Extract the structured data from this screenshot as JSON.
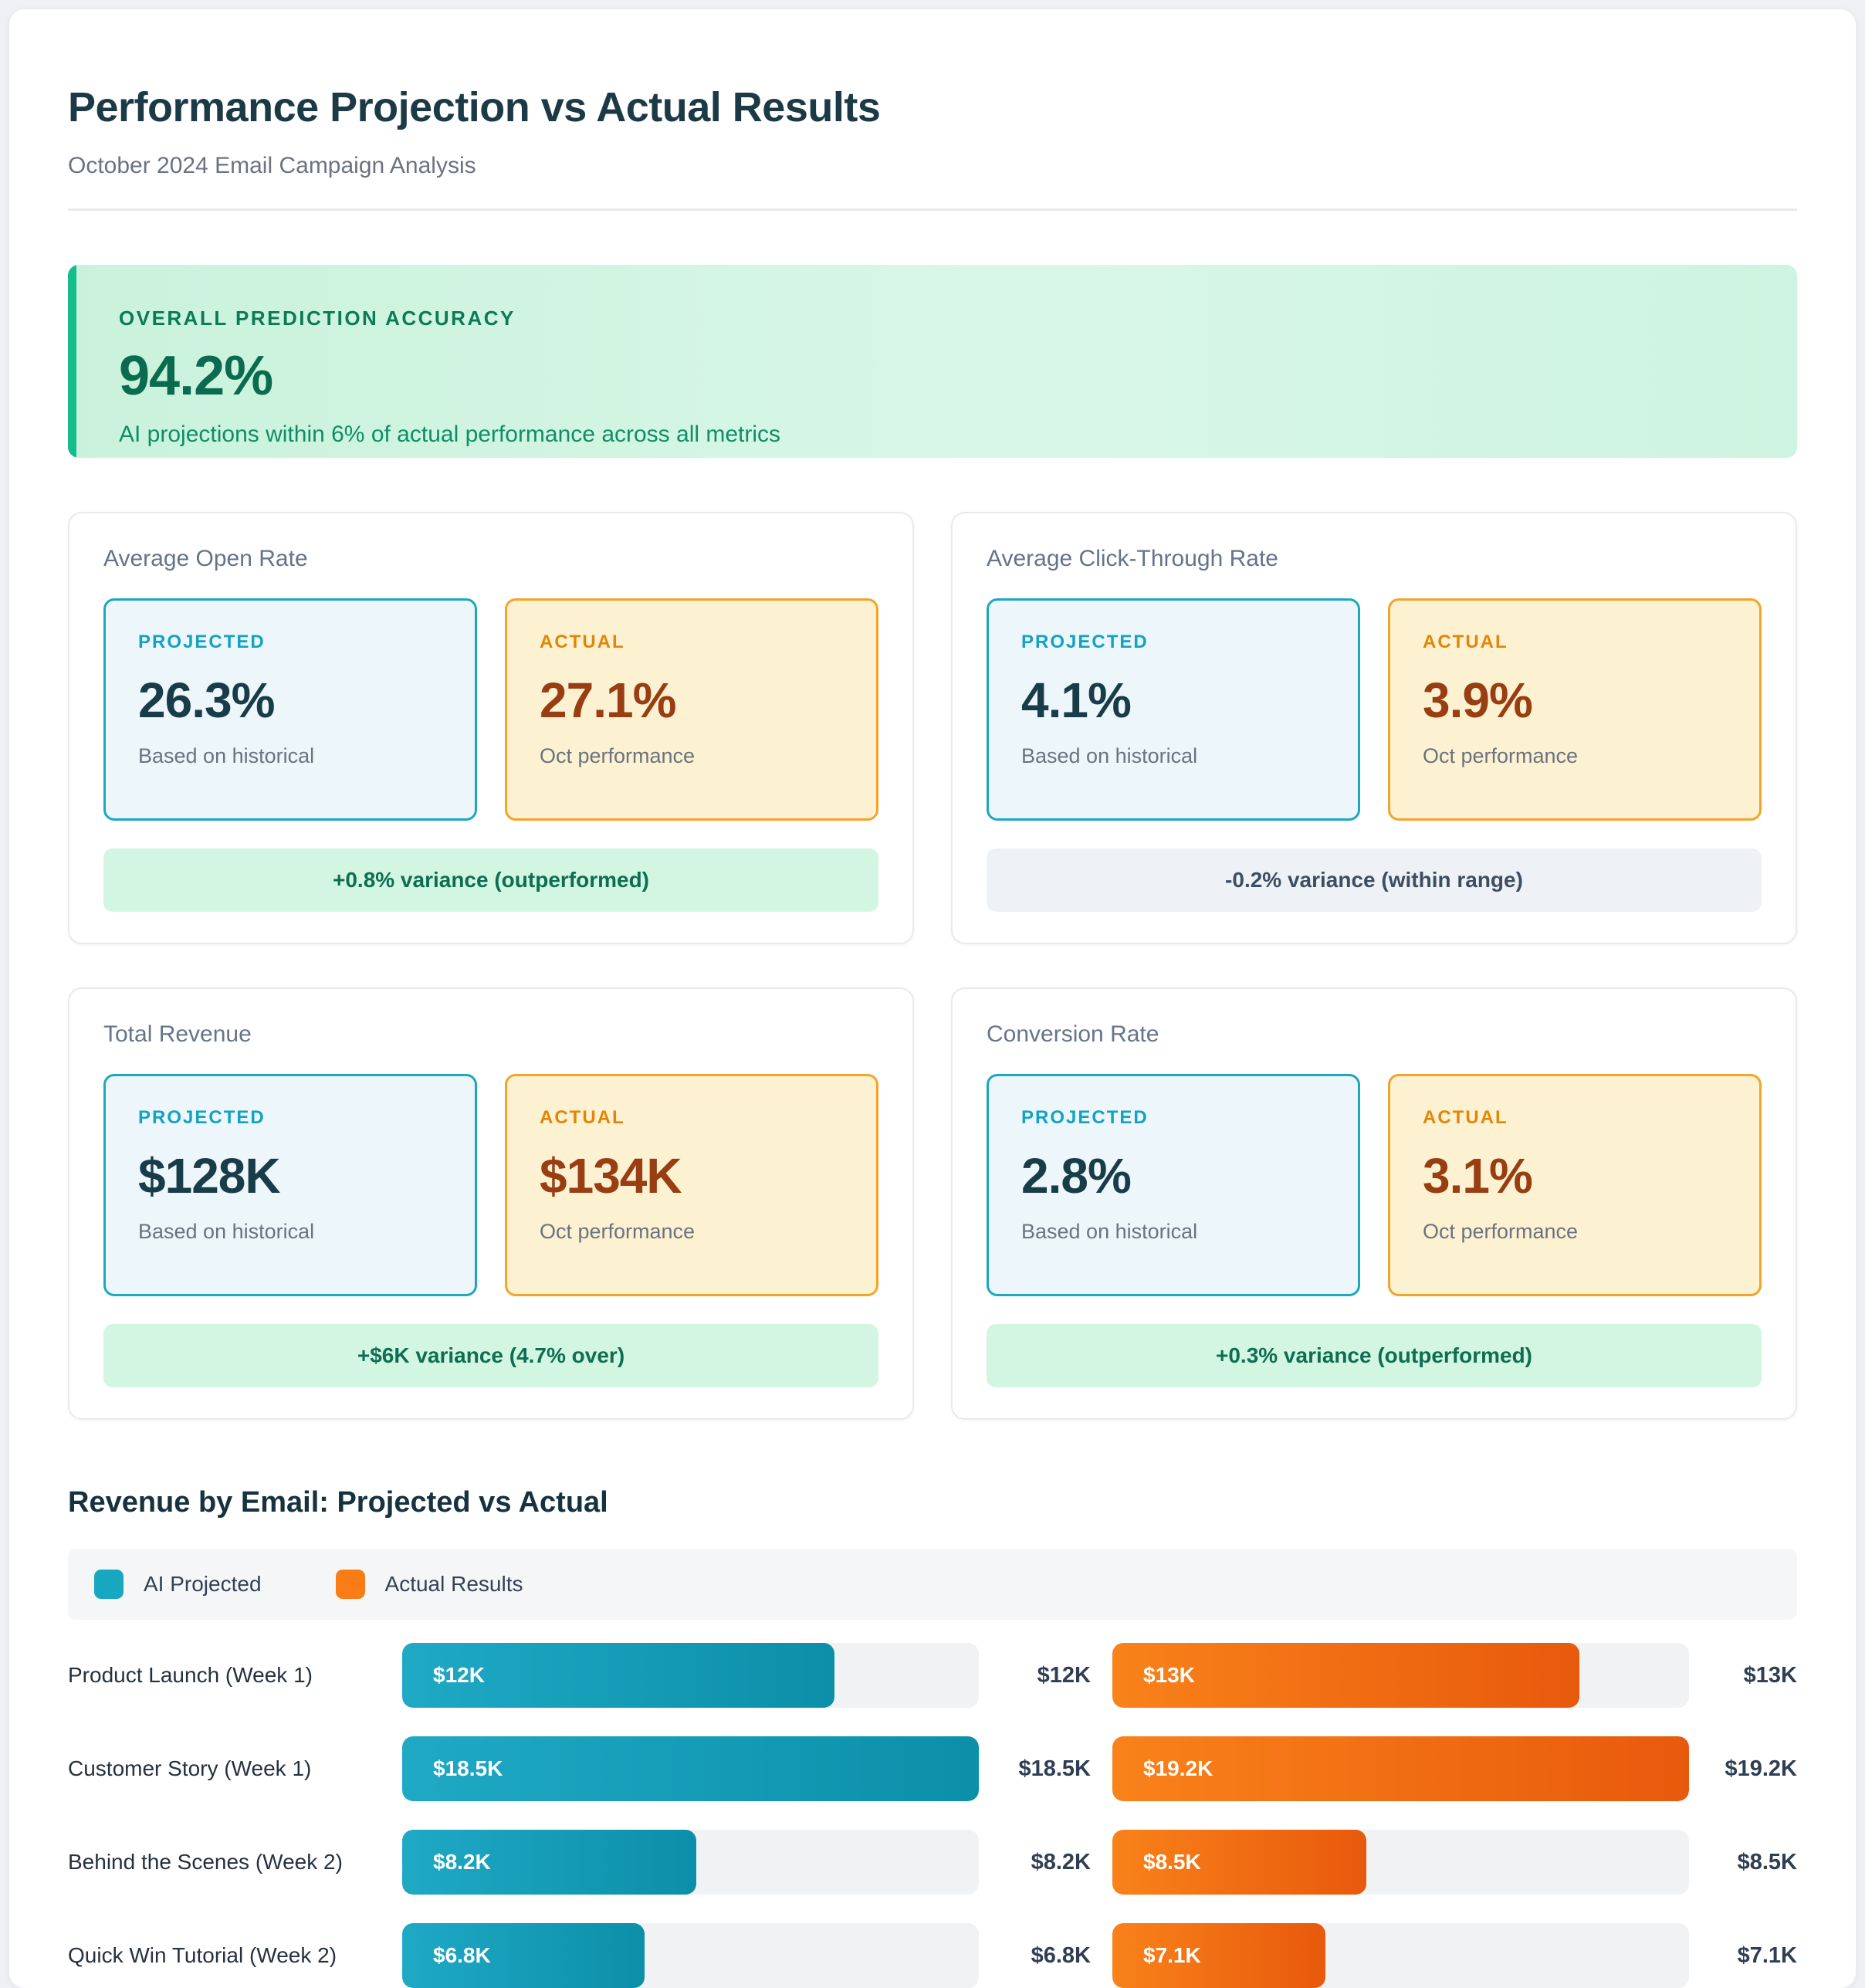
{
  "page": {
    "title": "Performance Projection vs Actual Results",
    "subtitle": "October 2024 Email Campaign Analysis"
  },
  "accuracy_banner": {
    "label": "OVERALL PREDICTION ACCURACY",
    "value": "94.2%",
    "description": "AI projections within 6% of actual performance across all metrics",
    "accent_color": "#14be8c",
    "text_color": "#0b6b4e"
  },
  "metric_cards": [
    {
      "title": "Average Open Rate",
      "projected": {
        "label": "PROJECTED",
        "value": "26.3%",
        "caption": "Based on historical"
      },
      "actual": {
        "label": "ACTUAL",
        "value": "27.1%",
        "caption": "Oct performance"
      },
      "variance": {
        "text": "+0.8% variance (outperformed)",
        "tone": "positive"
      }
    },
    {
      "title": "Average Click-Through Rate",
      "projected": {
        "label": "PROJECTED",
        "value": "4.1%",
        "caption": "Based on historical"
      },
      "actual": {
        "label": "ACTUAL",
        "value": "3.9%",
        "caption": "Oct performance"
      },
      "variance": {
        "text": "-0.2% variance (within range)",
        "tone": "neutral"
      }
    },
    {
      "title": "Total Revenue",
      "projected": {
        "label": "PROJECTED",
        "value": "$128K",
        "caption": "Based on historical"
      },
      "actual": {
        "label": "ACTUAL",
        "value": "$134K",
        "caption": "Oct performance"
      },
      "variance": {
        "text": "+$6K variance (4.7% over)",
        "tone": "positive"
      }
    },
    {
      "title": "Conversion Rate",
      "projected": {
        "label": "PROJECTED",
        "value": "2.8%",
        "caption": "Based on historical"
      },
      "actual": {
        "label": "ACTUAL",
        "value": "3.1%",
        "caption": "Oct performance"
      },
      "variance": {
        "text": "+0.3% variance (outperformed)",
        "tone": "positive"
      }
    }
  ],
  "chart": {
    "heading": "Revenue by Email: Projected vs Actual",
    "legend": [
      {
        "label": "AI Projected",
        "color": "#18a7c0"
      },
      {
        "label": "Actual Results",
        "color": "#f97c16"
      }
    ]
  },
  "chart_data": {
    "type": "bar",
    "title": "Revenue by Email: Projected vs Actual",
    "unit": "USD thousands",
    "categories": [
      "Product Launch (Week 1)",
      "Customer Story (Week 1)",
      "Behind the Scenes (Week 2)",
      "Quick Win Tutorial (Week 2)"
    ],
    "series": [
      {
        "name": "AI Projected",
        "values_k": [
          12,
          18.5,
          8.2,
          6.8
        ],
        "labels": [
          "$12K",
          "$18.5K",
          "$8.2K",
          "$6.8K"
        ],
        "bar_pct": [
          75,
          100,
          51,
          42
        ],
        "color_start": "#1fa9c5",
        "color_end": "#0c8fa9"
      },
      {
        "name": "Actual Results",
        "values_k": [
          13,
          19.2,
          8.5,
          7.1
        ],
        "labels": [
          "$13K",
          "$19.2K",
          "$8.5K",
          "$7.1K"
        ],
        "bar_pct": [
          81,
          100,
          44,
          37
        ],
        "color_start": "#f9821a",
        "color_end": "#e8590c"
      }
    ],
    "legend_position": "top",
    "grid": false
  }
}
